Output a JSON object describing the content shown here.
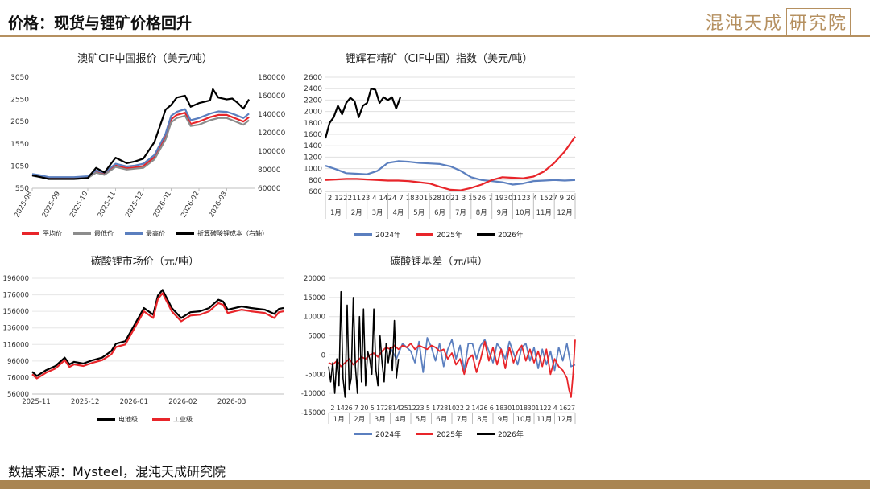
{
  "header": {
    "title": "价格：现货与锂矿价格回升",
    "brand": "混沌天成",
    "brand_box": "研究院"
  },
  "footer": {
    "source": "数据来源：Mysteel，混沌天成研究院"
  },
  "colors": {
    "accent": "#a98552",
    "red": "#e8252a",
    "gray": "#8c8c8c",
    "blue": "#5b7fbf",
    "black": "#000000"
  },
  "chart_data": [
    {
      "id": "spodumene_cif",
      "type": "line",
      "title": "澳矿CIF中国报价（美元/吨）",
      "x_ticks": [
        "2025-08",
        "2025-09",
        "2025-10",
        "2025-11",
        "2025-12",
        "2026-01",
        "2026-02",
        "2026-03"
      ],
      "y_ticks": [
        "3050",
        "2550",
        "2050",
        "1550",
        "1050",
        "550"
      ],
      "ylim": [
        550,
        3050
      ],
      "y2_ticks": [
        "180000",
        "160000",
        "140000",
        "120000",
        "100000",
        "80000",
        "60000"
      ],
      "y2lim": [
        60000,
        180000
      ],
      "x_range": [
        0,
        8
      ],
      "series": [
        {
          "name": "平均价",
          "color": "#e8252a",
          "axis": "left",
          "x": [
            0,
            0.3,
            0.6,
            1,
            1.5,
            2,
            2.3,
            2.6,
            3,
            3.4,
            3.7,
            4,
            4.4,
            4.8,
            5.0,
            5.2,
            5.5,
            5.7,
            6,
            6.4,
            6.7,
            7,
            7.2,
            7.4,
            7.6,
            7.8
          ],
          "y": [
            850,
            820,
            780,
            780,
            780,
            800,
            920,
            870,
            1060,
            1000,
            1020,
            1050,
            1250,
            1700,
            2100,
            2200,
            2250,
            2000,
            2050,
            2150,
            2200,
            2200,
            2150,
            2100,
            2050,
            2150
          ]
        },
        {
          "name": "最低价",
          "color": "#8c8c8c",
          "axis": "left",
          "x": [
            0,
            0.3,
            0.6,
            1,
            1.5,
            2,
            2.3,
            2.6,
            3,
            3.4,
            3.7,
            4,
            4.4,
            4.8,
            5.0,
            5.2,
            5.5,
            5.7,
            6,
            6.4,
            6.7,
            7,
            7.2,
            7.4,
            7.6,
            7.8
          ],
          "y": [
            830,
            800,
            760,
            760,
            760,
            780,
            900,
            850,
            1030,
            970,
            990,
            1010,
            1200,
            1650,
            2030,
            2130,
            2180,
            1950,
            1980,
            2080,
            2130,
            2130,
            2080,
            2030,
            1980,
            2080
          ]
        },
        {
          "name": "最高价",
          "color": "#5b7fbf",
          "axis": "left",
          "x": [
            0,
            0.3,
            0.6,
            1,
            1.5,
            2,
            2.3,
            2.6,
            3,
            3.4,
            3.7,
            4,
            4.4,
            4.8,
            5.0,
            5.2,
            5.5,
            5.7,
            6,
            6.4,
            6.7,
            7,
            7.2,
            7.4,
            7.6,
            7.8
          ],
          "y": [
            870,
            840,
            800,
            800,
            800,
            820,
            950,
            900,
            1100,
            1040,
            1060,
            1100,
            1300,
            1780,
            2180,
            2270,
            2330,
            2080,
            2130,
            2230,
            2280,
            2270,
            2230,
            2180,
            2130,
            2230
          ]
        },
        {
          "name": "折算碳酸锂成本（右轴）",
          "color": "#000000",
          "axis": "right",
          "x": [
            0,
            0.3,
            0.6,
            1,
            1.5,
            2,
            2.3,
            2.6,
            3,
            3.4,
            3.7,
            4,
            4.4,
            4.8,
            5.0,
            5.2,
            5.5,
            5.7,
            6,
            6.4,
            6.5,
            6.7,
            7,
            7.2,
            7.4,
            7.6,
            7.8
          ],
          "y": [
            74000,
            72000,
            70000,
            70000,
            70000,
            71000,
            82000,
            77000,
            93000,
            87000,
            89000,
            92000,
            110000,
            145000,
            150000,
            158000,
            160000,
            148000,
            152000,
            155000,
            167000,
            158000,
            156000,
            157000,
            152000,
            146000,
            156000
          ]
        }
      ]
    },
    {
      "id": "spodumene_index",
      "type": "line",
      "title": "锂辉石精矿（CIF中国）指数（美元/吨）",
      "x_tick_labels": [
        "2",
        "12",
        "22",
        "11",
        "23",
        "4",
        "14",
        "24",
        "7",
        "18",
        "30",
        "16",
        "28",
        "10",
        "21",
        "3",
        "15",
        "26",
        "7",
        "19",
        "30",
        "11",
        "23",
        "4",
        "15",
        "27",
        "9",
        "20"
      ],
      "x_months": [
        "1月",
        "2月",
        "3月",
        "4月",
        "5月",
        "6月",
        "7月",
        "8月",
        "9月",
        "10月",
        "11月",
        "12月"
      ],
      "y_ticks": [
        "2600",
        "2400",
        "2200",
        "2000",
        "1800",
        "1600",
        "1400",
        "1200",
        "1000",
        "800",
        "600"
      ],
      "ylim": [
        600,
        2600
      ],
      "x_range": [
        0,
        12
      ],
      "series": [
        {
          "name": "2024年",
          "color": "#5b7fbf",
          "x": [
            0,
            0.5,
            1,
            1.5,
            2,
            2.5,
            3,
            3.5,
            4,
            4.5,
            5,
            5.5,
            6,
            6.5,
            7,
            7.5,
            8,
            8.5,
            9,
            9.5,
            10,
            10.5,
            11,
            11.5,
            12
          ],
          "y": [
            1050,
            990,
            920,
            910,
            900,
            960,
            1100,
            1130,
            1120,
            1100,
            1090,
            1080,
            1040,
            960,
            850,
            800,
            780,
            760,
            720,
            740,
            780,
            790,
            800,
            790,
            800
          ]
        },
        {
          "name": "2025年",
          "color": "#e8252a",
          "x": [
            0,
            0.5,
            1,
            1.5,
            2,
            2.5,
            3,
            3.5,
            4,
            4.5,
            5,
            5.5,
            6,
            6.5,
            7,
            7.5,
            8,
            8.5,
            9,
            9.5,
            10,
            10.5,
            11,
            11.5,
            12
          ],
          "y": [
            800,
            810,
            820,
            820,
            810,
            800,
            790,
            790,
            780,
            760,
            740,
            680,
            630,
            620,
            660,
            720,
            800,
            850,
            840,
            830,
            860,
            950,
            1100,
            1300,
            1560
          ]
        },
        {
          "name": "2026年",
          "color": "#000000",
          "x": [
            0,
            0.2,
            0.4,
            0.6,
            0.8,
            1.0,
            1.2,
            1.4,
            1.6,
            1.8,
            2.0,
            2.2,
            2.4,
            2.6,
            2.8,
            3.0,
            3.2,
            3.4,
            3.6
          ],
          "y": [
            1530,
            1800,
            1900,
            2100,
            1950,
            2150,
            2240,
            2180,
            1900,
            2100,
            2150,
            2400,
            2380,
            2150,
            2250,
            2200,
            2250,
            2050,
            2250
          ]
        }
      ]
    },
    {
      "id": "li2co3_spot",
      "type": "line",
      "title": "碳酸锂市场价（元/吨）",
      "x_ticks": [
        "2025-11",
        "2025-12",
        "2026-01",
        "2026-02",
        "2026-03"
      ],
      "y_ticks": [
        "196000",
        "176000",
        "156000",
        "136000",
        "116000",
        "96000",
        "76000",
        "56000"
      ],
      "ylim": [
        56000,
        196000
      ],
      "x_range": [
        0,
        5.4
      ],
      "series": [
        {
          "name": "电池级",
          "color": "#000000",
          "x": [
            0,
            0.1,
            0.3,
            0.5,
            0.7,
            0.8,
            0.9,
            1.1,
            1.3,
            1.5,
            1.7,
            1.8,
            2.0,
            2.2,
            2.4,
            2.6,
            2.7,
            2.8,
            3.0,
            3.2,
            3.4,
            3.6,
            3.8,
            4.0,
            4.1,
            4.2,
            4.5,
            4.7,
            5.0,
            5.2,
            5.3,
            5.4
          ],
          "y": [
            83000,
            78000,
            85000,
            90000,
            100000,
            92000,
            95000,
            93000,
            97000,
            100000,
            108000,
            117000,
            120000,
            140000,
            160000,
            152000,
            175000,
            182000,
            160000,
            148000,
            155000,
            156000,
            160000,
            170000,
            168000,
            158000,
            162000,
            160000,
            158000,
            153000,
            159000,
            160000
          ]
        },
        {
          "name": "工业级",
          "color": "#e8252a",
          "x": [
            0,
            0.1,
            0.3,
            0.5,
            0.7,
            0.8,
            0.9,
            1.1,
            1.3,
            1.5,
            1.7,
            1.8,
            2.0,
            2.2,
            2.4,
            2.6,
            2.7,
            2.8,
            3.0,
            3.2,
            3.4,
            3.6,
            3.8,
            4.0,
            4.1,
            4.2,
            4.5,
            4.7,
            5.0,
            5.2,
            5.3,
            5.4
          ],
          "y": [
            80000,
            75000,
            82000,
            87000,
            97000,
            89000,
            92000,
            90000,
            94000,
            97000,
            104000,
            113000,
            116000,
            136000,
            156000,
            148000,
            171000,
            178000,
            156000,
            144000,
            151000,
            152000,
            156000,
            166000,
            164000,
            154000,
            158000,
            156000,
            154000,
            148000,
            155000,
            156000
          ]
        }
      ]
    },
    {
      "id": "li2co3_basis",
      "type": "line",
      "title": "碳酸锂基差（元/吨）",
      "x_tick_labels": [
        "2",
        "14",
        "26",
        "7",
        "20",
        "5",
        "17",
        "28",
        "14",
        "25",
        "12",
        "23",
        "5",
        "17",
        "28",
        "10",
        "22",
        "2",
        "14",
        "26",
        "6",
        "18",
        "30",
        "10",
        "18",
        "30",
        "11",
        "22",
        "4",
        "16",
        "27"
      ],
      "x_months": [
        "1月",
        "2月",
        "3月",
        "4月",
        "5月",
        "6月",
        "7月",
        "8月",
        "9月",
        "10月",
        "11月",
        "12月"
      ],
      "y_ticks": [
        "20000",
        "15000",
        "10000",
        "5000",
        "0",
        "-5000",
        "-10000",
        "-15000"
      ],
      "ylim": [
        -15000,
        20000
      ],
      "x_range": [
        0,
        12
      ],
      "series": [
        {
          "name": "2024年",
          "color": "#5b7fbf",
          "x": [
            3.0,
            3.3,
            3.6,
            4.0,
            4.2,
            4.4,
            4.6,
            4.8,
            5.0,
            5.2,
            5.4,
            5.6,
            5.8,
            6.0,
            6.2,
            6.4,
            6.6,
            6.8,
            7.0,
            7.2,
            7.4,
            7.6,
            7.8,
            8.0,
            8.2,
            8.4,
            8.6,
            8.8,
            9.0,
            9.2,
            9.4,
            9.6,
            9.8,
            10.0,
            10.2,
            10.4,
            10.6,
            10.8,
            11.0,
            11.2,
            11.4,
            11.6,
            11.8,
            12.0
          ],
          "y": [
            2000,
            -1000,
            3000,
            1000,
            -2000,
            3500,
            -4500,
            4500,
            2000,
            -1500,
            3000,
            -3000,
            1500,
            4000,
            -1000,
            2500,
            -4000,
            3000,
            3000,
            -1000,
            2500,
            4000,
            1000,
            -2000,
            3000,
            1500,
            -1000,
            3500,
            500,
            -2500,
            2000,
            3000,
            -1500,
            2000,
            -3500,
            1500,
            -2500,
            1000,
            -4000,
            2000,
            -1500,
            3000,
            -3000,
            -2500
          ]
        },
        {
          "name": "2025年",
          "color": "#e8252a",
          "x": [
            0.0,
            0.2,
            0.4,
            0.6,
            0.8,
            1.0,
            1.2,
            1.4,
            1.6,
            1.8,
            2.0,
            2.2,
            2.4,
            2.6,
            2.8,
            3.0,
            3.2,
            3.4,
            3.6,
            3.8,
            4.0,
            4.2,
            4.4,
            4.6,
            4.8,
            5.0,
            5.2,
            5.4,
            5.6,
            5.8,
            6.0,
            6.2,
            6.4,
            6.6,
            6.8,
            7.0,
            7.2,
            7.4,
            7.6,
            7.8,
            8.0,
            8.2,
            8.4,
            8.6,
            8.8,
            9.0,
            9.2,
            9.4,
            9.6,
            9.8,
            10.0,
            10.2,
            10.4,
            10.6,
            10.8,
            11.0,
            11.2,
            11.4,
            11.6,
            11.7,
            11.8,
            11.9,
            12.0
          ],
          "y": [
            -2000,
            -2500,
            -1500,
            -3000,
            -2000,
            -1000,
            -2500,
            -1500,
            -500,
            -1000,
            0,
            500,
            -500,
            1000,
            2000,
            1500,
            2500,
            1500,
            2500,
            2000,
            3000,
            1500,
            2500,
            2000,
            1500,
            2500,
            2000,
            1000,
            1500,
            -1000,
            500,
            -2500,
            -1000,
            -5000,
            -1000,
            0,
            -4500,
            -1000,
            3500,
            -1500,
            2000,
            -2500,
            1500,
            -3500,
            2000,
            -2000,
            1000,
            2500,
            -1500,
            1500,
            -2000,
            1000,
            -3000,
            1500,
            -5000,
            -1000,
            -3000,
            -4000,
            -6000,
            -9000,
            -11000,
            -5000,
            4000
          ]
        },
        {
          "name": "2026年",
          "color": "#000000",
          "x": [
            0.0,
            0.1,
            0.2,
            0.3,
            0.4,
            0.5,
            0.6,
            0.7,
            0.8,
            0.9,
            1.0,
            1.1,
            1.2,
            1.3,
            1.4,
            1.5,
            1.6,
            1.7,
            1.8,
            1.9,
            2.0,
            2.1,
            2.2,
            2.3,
            2.4,
            2.5,
            2.6,
            2.7,
            2.8,
            2.9,
            3.0,
            3.1,
            3.2,
            3.3,
            3.4
          ],
          "y": [
            -3000,
            -7000,
            -2000,
            -10000,
            -1000,
            -8000,
            16500,
            -6000,
            -11000,
            13000,
            -9000,
            -6000,
            15000,
            -3000,
            -10000,
            10000,
            -7000,
            12000,
            -8000,
            1000,
            -1000,
            -5000,
            12000,
            -4000,
            -8000,
            5000,
            -2000,
            -7000,
            3000,
            -2000,
            2000,
            -4000,
            9000,
            -6000,
            -1000
          ]
        }
      ]
    }
  ]
}
